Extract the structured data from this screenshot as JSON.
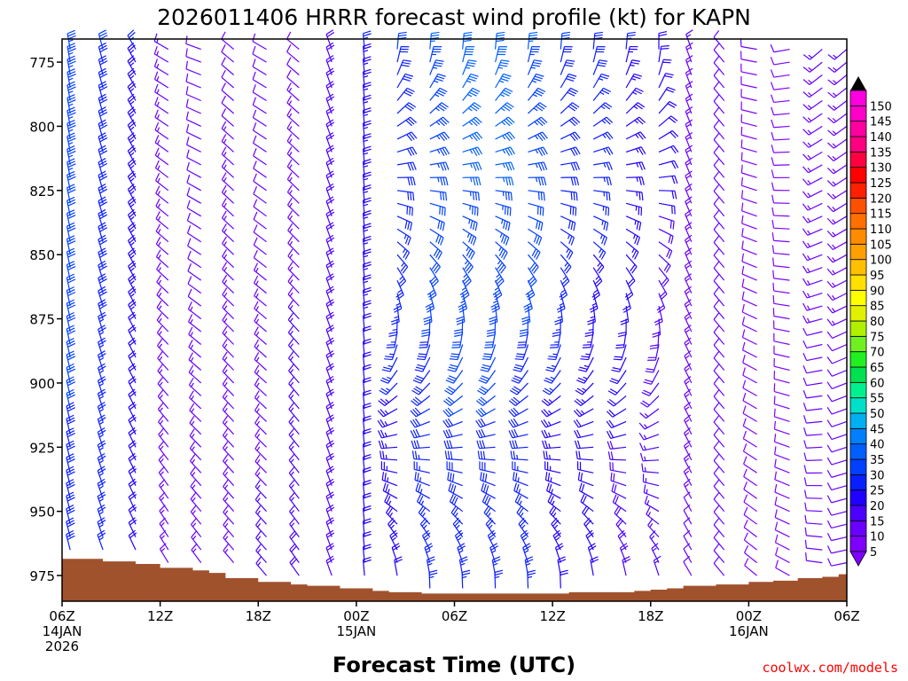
{
  "title": "2026011406 HRRR forecast wind profile (kt) for KAPN",
  "credit": "coolwx.com/models",
  "chart_data": {
    "type": "wind-barb-profile",
    "title": "2026011406 HRRR forecast wind profile (kt) for KAPN",
    "xlabel": "Forecast Time (UTC)",
    "ylabel": "",
    "x_hours_range": [
      0,
      48
    ],
    "x_ticks": [
      {
        "hour": 0,
        "lines": [
          "06Z",
          "14JAN",
          "2026"
        ]
      },
      {
        "hour": 6,
        "lines": [
          "12Z"
        ]
      },
      {
        "hour": 12,
        "lines": [
          "18Z"
        ]
      },
      {
        "hour": 18,
        "lines": [
          "00Z",
          "15JAN"
        ]
      },
      {
        "hour": 24,
        "lines": [
          "06Z"
        ]
      },
      {
        "hour": 30,
        "lines": [
          "12Z"
        ]
      },
      {
        "hour": 36,
        "lines": [
          "18Z"
        ]
      },
      {
        "hour": 42,
        "lines": [
          "00Z",
          "16JAN"
        ]
      },
      {
        "hour": 48,
        "lines": [
          "06Z"
        ]
      }
    ],
    "ylim": [
      985,
      766
    ],
    "y_ticks": [
      775,
      800,
      825,
      850,
      875,
      900,
      925,
      950,
      975
    ],
    "levels_hpa": [
      770,
      775,
      780,
      785,
      790,
      795,
      800,
      805,
      810,
      815,
      820,
      825,
      830,
      835,
      840,
      845,
      850,
      855,
      860,
      865,
      870,
      875,
      880,
      885,
      890,
      895,
      900,
      905,
      910,
      915,
      920,
      925,
      930,
      935,
      940,
      945,
      950,
      955,
      960,
      965,
      970,
      975,
      980
    ],
    "barb_columns": [
      {
        "hour": 0.5,
        "dir_top": 350,
        "dir_bottom": 345,
        "spd_top": 34,
        "spd_bottom": 28
      },
      {
        "hour": 2.5,
        "dir_top": 345,
        "dir_bottom": 340,
        "spd_top": 30,
        "spd_bottom": 25
      },
      {
        "hour": 4.5,
        "dir_top": 330,
        "dir_bottom": 335,
        "spd_top": 25,
        "spd_bottom": 20
      },
      {
        "hour": 6.5,
        "dir_top": 300,
        "dir_bottom": 330,
        "spd_top": 15,
        "spd_bottom": 14
      },
      {
        "hour": 8.5,
        "dir_top": 290,
        "dir_bottom": 325,
        "spd_top": 10,
        "spd_bottom": 15
      },
      {
        "hour": 10.5,
        "dir_top": 310,
        "dir_bottom": 320,
        "spd_top": 12,
        "spd_bottom": 15
      },
      {
        "hour": 12.5,
        "dir_top": 300,
        "dir_bottom": 320,
        "spd_top": 10,
        "spd_bottom": 16
      },
      {
        "hour": 14.5,
        "dir_top": 310,
        "dir_bottom": 325,
        "spd_top": 12,
        "spd_bottom": 18
      },
      {
        "hour": 16.5,
        "dir_top": 340,
        "dir_bottom": 340,
        "spd_top": 18,
        "spd_bottom": 20
      },
      {
        "hour": 18.5,
        "dir_top": 355,
        "dir_bottom": 355,
        "spd_top": 25,
        "spd_bottom": 20
      },
      {
        "hour": 20.5,
        "dir_top": 5,
        "dir_bottom": 358,
        "spd_top": 30,
        "spd_bottom": 22
      },
      {
        "hour": 22.5,
        "dir_top": 5,
        "dir_bottom": 358,
        "spd_top": 35,
        "spd_bottom": 25
      },
      {
        "hour": 24.5,
        "dir_top": 5,
        "dir_bottom": 358,
        "spd_top": 38,
        "spd_bottom": 26
      },
      {
        "hour": 26.5,
        "dir_top": 5,
        "dir_bottom": 358,
        "spd_top": 38,
        "spd_bottom": 26
      },
      {
        "hour": 28.5,
        "dir_top": 5,
        "dir_bottom": 358,
        "spd_top": 35,
        "spd_bottom": 25
      },
      {
        "hour": 30.5,
        "dir_top": 5,
        "dir_bottom": 358,
        "spd_top": 30,
        "spd_bottom": 22
      },
      {
        "hour": 32.5,
        "dir_top": 5,
        "dir_bottom": 358,
        "spd_top": 28,
        "spd_bottom": 20
      },
      {
        "hour": 34.5,
        "dir_top": 5,
        "dir_bottom": 355,
        "spd_top": 25,
        "spd_bottom": 18
      },
      {
        "hour": 36.5,
        "dir_top": 0,
        "dir_bottom": 350,
        "spd_top": 22,
        "spd_bottom": 15
      },
      {
        "hour": 38.5,
        "dir_top": 340,
        "dir_bottom": 330,
        "spd_top": 15,
        "spd_bottom": 12
      },
      {
        "hour": 40.5,
        "dir_top": 320,
        "dir_bottom": 320,
        "spd_top": 12,
        "spd_bottom": 10
      },
      {
        "hour": 42.5,
        "dir_top": 280,
        "dir_bottom": 310,
        "spd_top": 10,
        "spd_bottom": 8
      },
      {
        "hour": 44.5,
        "dir_top": 260,
        "dir_bottom": 300,
        "spd_top": 10,
        "spd_bottom": 8
      },
      {
        "hour": 46.5,
        "dir_top": 230,
        "dir_bottom": 280,
        "spd_top": 15,
        "spd_bottom": 10
      },
      {
        "hour": 48.0,
        "dir_top": 230,
        "dir_bottom": 260,
        "spd_top": 15,
        "spd_bottom": 10
      }
    ],
    "surface_pressure": [
      {
        "hour": 0,
        "p": 968.5
      },
      {
        "hour": 2.5,
        "p": 969.5
      },
      {
        "hour": 4.5,
        "p": 970.5
      },
      {
        "hour": 6,
        "p": 972
      },
      {
        "hour": 8,
        "p": 973
      },
      {
        "hour": 9,
        "p": 974
      },
      {
        "hour": 10,
        "p": 976
      },
      {
        "hour": 12,
        "p": 977.5
      },
      {
        "hour": 14,
        "p": 978.5
      },
      {
        "hour": 15,
        "p": 979
      },
      {
        "hour": 17,
        "p": 980
      },
      {
        "hour": 19,
        "p": 981
      },
      {
        "hour": 20,
        "p": 981.5
      },
      {
        "hour": 22,
        "p": 982
      },
      {
        "hour": 26,
        "p": 982
      },
      {
        "hour": 30,
        "p": 982
      },
      {
        "hour": 31,
        "p": 981.5
      },
      {
        "hour": 35,
        "p": 981
      },
      {
        "hour": 36,
        "p": 980.5
      },
      {
        "hour": 37,
        "p": 980
      },
      {
        "hour": 38,
        "p": 979
      },
      {
        "hour": 40,
        "p": 978.5
      },
      {
        "hour": 42,
        "p": 977.5
      },
      {
        "hour": 43.5,
        "p": 977
      },
      {
        "hour": 45,
        "p": 976
      },
      {
        "hour": 46.5,
        "p": 975.5
      },
      {
        "hour": 47.5,
        "p": 974.5
      },
      {
        "hour": 48,
        "p": 974.5
      }
    ],
    "terrain_color": "#a0522d",
    "colorbar": {
      "labels": [
        "5",
        "10",
        "15",
        "20",
        "25",
        "30",
        "35",
        "40",
        "45",
        "50",
        "55",
        "60",
        "65",
        "70",
        "75",
        "80",
        "85",
        "90",
        "95",
        "100",
        "105",
        "110",
        "115",
        "120",
        "125",
        "130",
        "135",
        "140",
        "145",
        "150"
      ],
      "colors": [
        "#7f00ff",
        "#6a00ff",
        "#4b00ff",
        "#2000ff",
        "#0a1fff",
        "#0040ff",
        "#0060ff",
        "#0080ff",
        "#00b0f0",
        "#00e0c8",
        "#00f090",
        "#00e050",
        "#20f020",
        "#70f020",
        "#b0f000",
        "#e0f000",
        "#ffff00",
        "#ffe000",
        "#ffc000",
        "#ffa000",
        "#ff8c00",
        "#ff7000",
        "#ff5000",
        "#ff2000",
        "#ff0000",
        "#ff0040",
        "#ff0080",
        "#ff00a0",
        "#ff00c8",
        "#ff00e0"
      ]
    }
  }
}
